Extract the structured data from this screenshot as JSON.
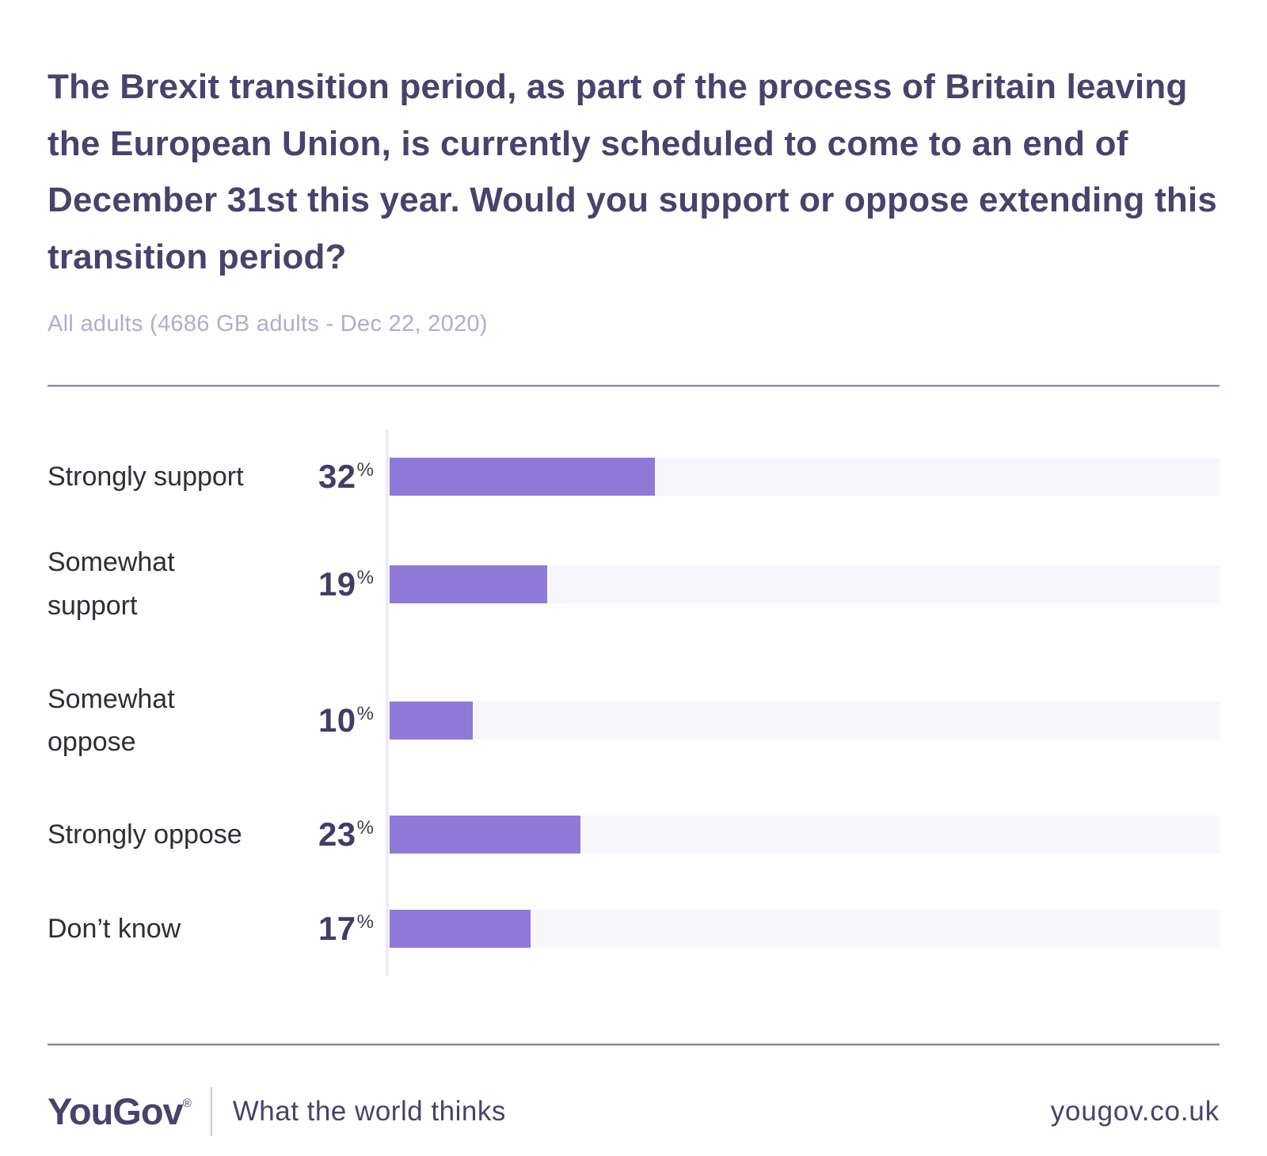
{
  "chart_data": {
    "type": "bar",
    "orientation": "horizontal",
    "title": "The Brexit transition period, as part of the process of Britain leaving the European Union, is currently scheduled to come to an end of December 31st this year. Would you support or oppose extending this transition period?",
    "subtitle": "All adults (4686 GB adults - Dec 22, 2020)",
    "categories": [
      "Strongly support",
      "Somewhat\nsupport",
      "Somewhat\noppose",
      "Strongly oppose",
      "Don’t know"
    ],
    "values": [
      32,
      19,
      10,
      23,
      17
    ],
    "unit": "%",
    "xlim": [
      0,
      100
    ],
    "grid": false,
    "legend": false,
    "bar_color": "#8e79d6",
    "track_color": "#f7f6fb",
    "axis_color": "#edebf6"
  },
  "footer": {
    "brand": "YouGov",
    "registered": "®",
    "tagline": "What the world thinks",
    "site": "yougov.co.uk"
  },
  "colors": {
    "title_text": "#4a4268",
    "subtitle_text": "#b4abce",
    "label_text": "#2e2e34",
    "value_text": "#443c63",
    "divider": "#8e89a0"
  }
}
